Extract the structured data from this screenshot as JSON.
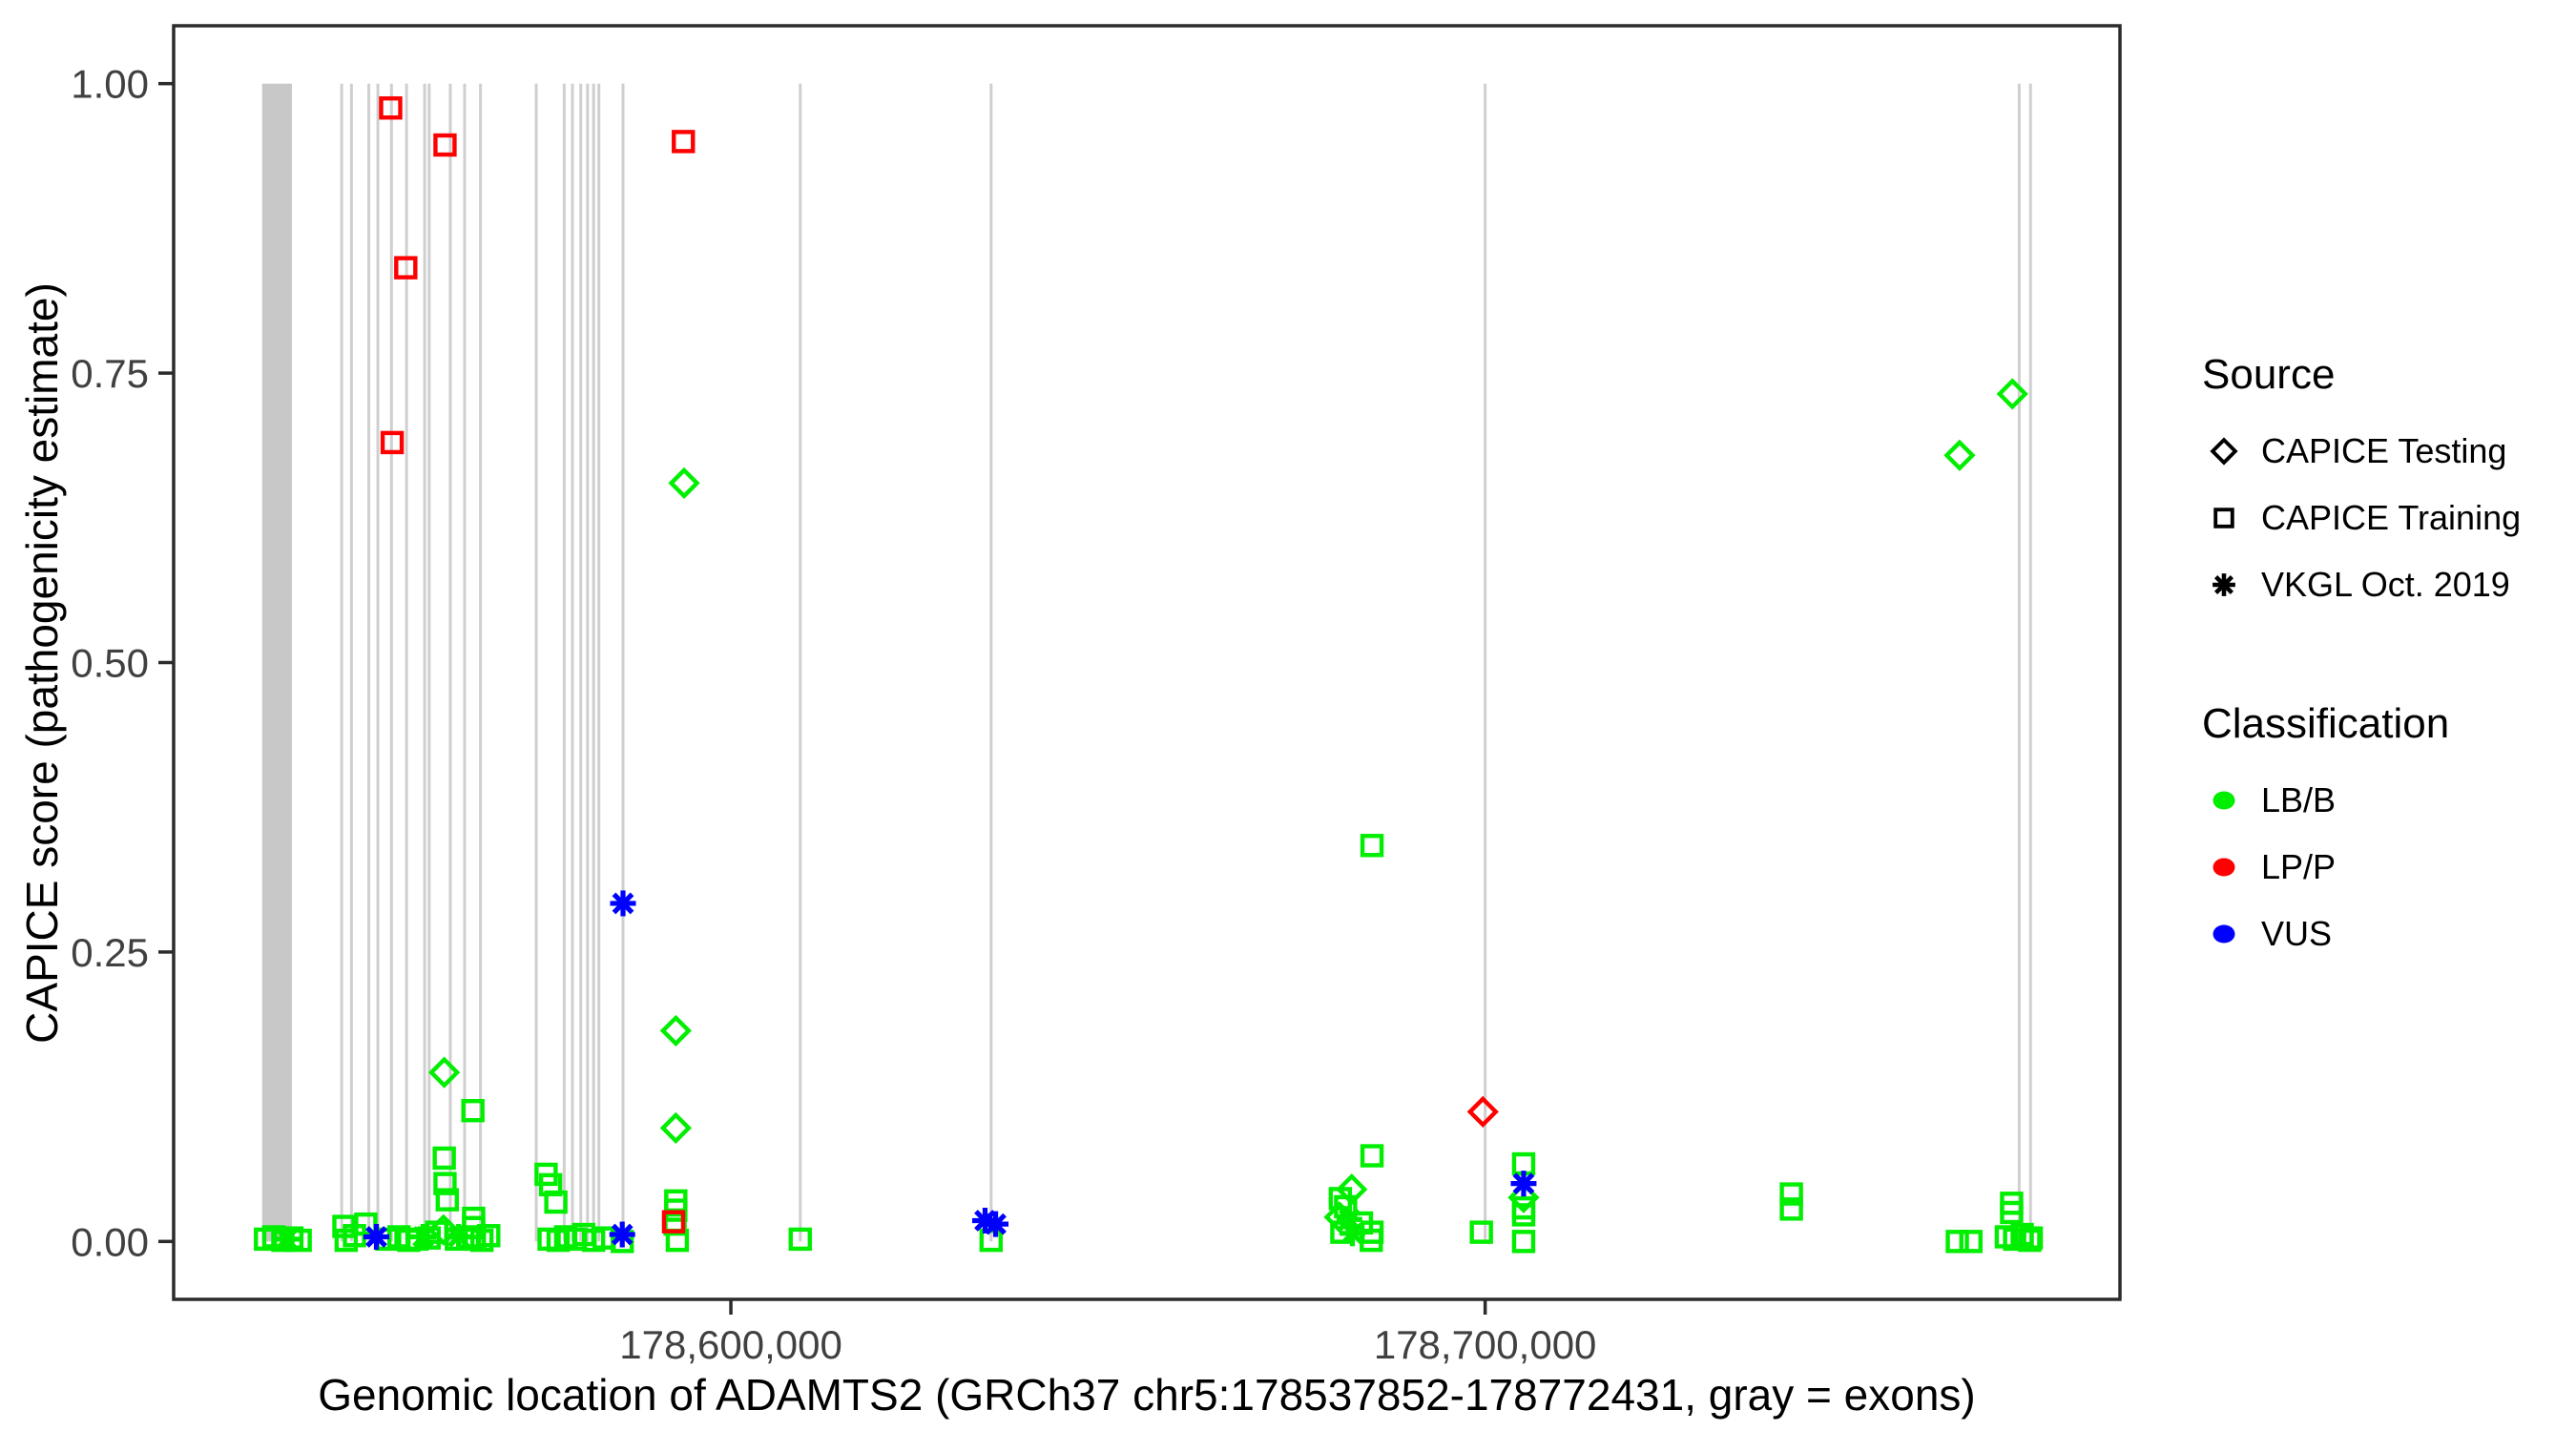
{
  "chart_data": {
    "type": "scatter",
    "title": "",
    "xlabel": "Genomic location of ADAMTS2 (GRCh37 chr5:178537852-178772431, gray = exons)",
    "ylabel": "CAPICE score (pathogenicity estimate)",
    "x_domain": [
      178537852,
      178772431
    ],
    "y_domain": [
      0,
      1
    ],
    "grid": "off",
    "x_ticks": [
      {
        "value": 178600000,
        "label": "178,600,000"
      },
      {
        "value": 178700000,
        "label": "178,700,000"
      }
    ],
    "y_ticks": [
      {
        "value": 0.0,
        "label": "0.00"
      },
      {
        "value": 0.25,
        "label": "0.25"
      },
      {
        "value": 0.5,
        "label": "0.50"
      },
      {
        "value": 0.75,
        "label": "0.75"
      },
      {
        "value": 1.0,
        "label": "1.00"
      }
    ],
    "exons": {
      "color_band": "#c8c8c8",
      "color_line": "#cfcfcf",
      "band": [
        178537852,
        178541800
      ],
      "lines": [
        178548400,
        178549700,
        178552000,
        178553200,
        178555000,
        178557000,
        178559400,
        178560000,
        178562800,
        178564700,
        178566800,
        178574200,
        178577900,
        178579000,
        178580100,
        178581000,
        178581800,
        178582500,
        178585700,
        178609200,
        178634500,
        178700000,
        178770800,
        178772300
      ]
    },
    "colors": {
      "LB/B": "#00ee00",
      "LP/P": "#ff0000",
      "VUS": "#0000ff"
    },
    "shapes": {
      "CAPICE Testing": "diamond",
      "CAPICE Training": "square",
      "VKGL Oct. 2019": "asterisk"
    },
    "legend": {
      "source": {
        "title": "Source",
        "items": [
          {
            "label": "CAPICE Testing",
            "shape": "diamond"
          },
          {
            "label": "CAPICE Training",
            "shape": "square"
          },
          {
            "label": "VKGL Oct. 2019",
            "shape": "asterisk"
          }
        ]
      },
      "classification": {
        "title": "Classification",
        "items": [
          {
            "label": "LB/B",
            "color": "#00ee00"
          },
          {
            "label": "LP/P",
            "color": "#ff0000"
          },
          {
            "label": "VUS",
            "color": "#0000ff"
          }
        ]
      }
    },
    "points": [
      {
        "x": 178538300,
        "y": 0.002,
        "source": "CAPICE Training",
        "class": "LB/B"
      },
      {
        "x": 178539400,
        "y": 0.004,
        "source": "CAPICE Training",
        "class": "LB/B"
      },
      {
        "x": 178540600,
        "y": 0.001,
        "source": "CAPICE Training",
        "class": "LB/B"
      },
      {
        "x": 178541800,
        "y": 0.003,
        "source": "CAPICE Training",
        "class": "LB/B"
      },
      {
        "x": 178542900,
        "y": 0.001,
        "source": "CAPICE Training",
        "class": "LB/B"
      },
      {
        "x": 178548700,
        "y": 0.013,
        "source": "CAPICE Training",
        "class": "LB/B"
      },
      {
        "x": 178549000,
        "y": 0.001,
        "source": "CAPICE Training",
        "class": "LB/B"
      },
      {
        "x": 178550100,
        "y": 0.005,
        "source": "CAPICE Training",
        "class": "LB/B"
      },
      {
        "x": 178551600,
        "y": 0.015,
        "source": "CAPICE Training",
        "class": "LB/B"
      },
      {
        "x": 178554400,
        "y": 0.002,
        "source": "CAPICE Training",
        "class": "LB/B"
      },
      {
        "x": 178556000,
        "y": 0.004,
        "source": "CAPICE Training",
        "class": "LB/B"
      },
      {
        "x": 178557300,
        "y": 0.001,
        "source": "CAPICE Training",
        "class": "LB/B"
      },
      {
        "x": 178558400,
        "y": 0.002,
        "source": "CAPICE Training",
        "class": "LB/B"
      },
      {
        "x": 178560000,
        "y": 0.003,
        "source": "CAPICE Training",
        "class": "LB/B"
      },
      {
        "x": 178561000,
        "y": 0.008,
        "source": "CAPICE Training",
        "class": "LB/B"
      },
      {
        "x": 178562000,
        "y": 0.072,
        "source": "CAPICE Training",
        "class": "LB/B"
      },
      {
        "x": 178562100,
        "y": 0.05,
        "source": "CAPICE Training",
        "class": "LB/B"
      },
      {
        "x": 178562400,
        "y": 0.036,
        "source": "CAPICE Training",
        "class": "LB/B"
      },
      {
        "x": 178563600,
        "y": 0.002,
        "source": "CAPICE Training",
        "class": "LB/B"
      },
      {
        "x": 178565200,
        "y": 0.004,
        "source": "CAPICE Training",
        "class": "LB/B"
      },
      {
        "x": 178565800,
        "y": 0.113,
        "source": "CAPICE Training",
        "class": "LB/B"
      },
      {
        "x": 178565900,
        "y": 0.02,
        "source": "CAPICE Training",
        "class": "LB/B"
      },
      {
        "x": 178565900,
        "y": 0.012,
        "source": "CAPICE Training",
        "class": "LB/B"
      },
      {
        "x": 178566000,
        "y": 0.002,
        "source": "CAPICE Training",
        "class": "LB/B"
      },
      {
        "x": 178567000,
        "y": 0.001,
        "source": "CAPICE Training",
        "class": "LB/B"
      },
      {
        "x": 178567900,
        "y": 0.005,
        "source": "CAPICE Training",
        "class": "LB/B"
      },
      {
        "x": 178575500,
        "y": 0.058,
        "source": "CAPICE Training",
        "class": "LB/B"
      },
      {
        "x": 178576100,
        "y": 0.049,
        "source": "CAPICE Training",
        "class": "LB/B"
      },
      {
        "x": 178576800,
        "y": 0.034,
        "source": "CAPICE Training",
        "class": "LB/B"
      },
      {
        "x": 178575900,
        "y": 0.002,
        "source": "CAPICE Training",
        "class": "LB/B"
      },
      {
        "x": 178577100,
        "y": 0.001,
        "source": "CAPICE Training",
        "class": "LB/B"
      },
      {
        "x": 178578100,
        "y": 0.004,
        "source": "CAPICE Training",
        "class": "LB/B"
      },
      {
        "x": 178579400,
        "y": 0.002,
        "source": "CAPICE Training",
        "class": "LB/B"
      },
      {
        "x": 178580500,
        "y": 0.006,
        "source": "CAPICE Training",
        "class": "LB/B"
      },
      {
        "x": 178581800,
        "y": 0.001,
        "source": "CAPICE Training",
        "class": "LB/B"
      },
      {
        "x": 178583200,
        "y": 0.003,
        "source": "CAPICE Training",
        "class": "LB/B"
      },
      {
        "x": 178585600,
        "y": 0.0,
        "source": "CAPICE Training",
        "class": "LB/B"
      },
      {
        "x": 178592700,
        "y": 0.035,
        "source": "CAPICE Training",
        "class": "LB/B"
      },
      {
        "x": 178592700,
        "y": 0.027,
        "source": "CAPICE Training",
        "class": "LB/B"
      },
      {
        "x": 178592600,
        "y": 0.015,
        "source": "CAPICE Training",
        "class": "LB/B"
      },
      {
        "x": 178592900,
        "y": 0.001,
        "source": "CAPICE Training",
        "class": "LB/B"
      },
      {
        "x": 178609200,
        "y": 0.002,
        "source": "CAPICE Training",
        "class": "LB/B"
      },
      {
        "x": 178634500,
        "y": 0.001,
        "source": "CAPICE Training",
        "class": "LB/B"
      },
      {
        "x": 178680800,
        "y": 0.037,
        "source": "CAPICE Training",
        "class": "LB/B"
      },
      {
        "x": 178681500,
        "y": 0.03,
        "source": "CAPICE Training",
        "class": "LB/B"
      },
      {
        "x": 178683600,
        "y": 0.016,
        "source": "CAPICE Training",
        "class": "LB/B"
      },
      {
        "x": 178681000,
        "y": 0.008,
        "source": "CAPICE Training",
        "class": "LB/B"
      },
      {
        "x": 178685000,
        "y": 0.008,
        "source": "CAPICE Training",
        "class": "LB/B"
      },
      {
        "x": 178684900,
        "y": 0.001,
        "source": "CAPICE Training",
        "class": "LB/B"
      },
      {
        "x": 178685000,
        "y": 0.342,
        "source": "CAPICE Training",
        "class": "LB/B"
      },
      {
        "x": 178685000,
        "y": 0.074,
        "source": "CAPICE Training",
        "class": "LB/B"
      },
      {
        "x": 178699500,
        "y": 0.008,
        "source": "CAPICE Training",
        "class": "LB/B"
      },
      {
        "x": 178705100,
        "y": 0.067,
        "source": "CAPICE Training",
        "class": "LB/B"
      },
      {
        "x": 178705100,
        "y": 0.029,
        "source": "CAPICE Training",
        "class": "LB/B"
      },
      {
        "x": 178705100,
        "y": 0.023,
        "source": "CAPICE Training",
        "class": "LB/B"
      },
      {
        "x": 178705100,
        "y": 0.0,
        "source": "CAPICE Training",
        "class": "LB/B"
      },
      {
        "x": 178740600,
        "y": 0.041,
        "source": "CAPICE Training",
        "class": "LB/B"
      },
      {
        "x": 178740600,
        "y": 0.028,
        "source": "CAPICE Training",
        "class": "LB/B"
      },
      {
        "x": 178762600,
        "y": 0.0,
        "source": "CAPICE Training",
        "class": "LB/B"
      },
      {
        "x": 178764400,
        "y": 0.0,
        "source": "CAPICE Training",
        "class": "LB/B"
      },
      {
        "x": 178769800,
        "y": 0.033,
        "source": "CAPICE Training",
        "class": "LB/B"
      },
      {
        "x": 178769800,
        "y": 0.025,
        "source": "CAPICE Training",
        "class": "LB/B"
      },
      {
        "x": 178769100,
        "y": 0.004,
        "source": "CAPICE Training",
        "class": "LB/B"
      },
      {
        "x": 178770200,
        "y": 0.002,
        "source": "CAPICE Training",
        "class": "LB/B"
      },
      {
        "x": 178771200,
        "y": 0.006,
        "source": "CAPICE Training",
        "class": "LB/B"
      },
      {
        "x": 178772200,
        "y": 0.001,
        "source": "CAPICE Training",
        "class": "LB/B"
      },
      {
        "x": 178772400,
        "y": 0.003,
        "source": "CAPICE Training",
        "class": "LB/B"
      },
      {
        "x": 178554900,
        "y": 0.979,
        "source": "CAPICE Training",
        "class": "LP/P"
      },
      {
        "x": 178562100,
        "y": 0.947,
        "source": "CAPICE Training",
        "class": "LP/P"
      },
      {
        "x": 178556900,
        "y": 0.841,
        "source": "CAPICE Training",
        "class": "LP/P"
      },
      {
        "x": 178555100,
        "y": 0.69,
        "source": "CAPICE Training",
        "class": "LP/P"
      },
      {
        "x": 178593700,
        "y": 0.95,
        "source": "CAPICE Training",
        "class": "LP/P"
      },
      {
        "x": 178592400,
        "y": 0.017,
        "source": "CAPICE Training",
        "class": "LP/P"
      },
      {
        "x": 178562000,
        "y": 0.146,
        "source": "CAPICE Testing",
        "class": "LB/B"
      },
      {
        "x": 178561900,
        "y": 0.01,
        "source": "CAPICE Testing",
        "class": "LB/B"
      },
      {
        "x": 178592700,
        "y": 0.182,
        "source": "CAPICE Testing",
        "class": "LB/B"
      },
      {
        "x": 178592700,
        "y": 0.098,
        "source": "CAPICE Testing",
        "class": "LB/B"
      },
      {
        "x": 178593800,
        "y": 0.655,
        "source": "CAPICE Testing",
        "class": "LB/B"
      },
      {
        "x": 178682300,
        "y": 0.045,
        "source": "CAPICE Testing",
        "class": "LB/B"
      },
      {
        "x": 178680700,
        "y": 0.021,
        "source": "CAPICE Testing",
        "class": "LB/B"
      },
      {
        "x": 178705100,
        "y": 0.038,
        "source": "CAPICE Testing",
        "class": "LB/B"
      },
      {
        "x": 178762900,
        "y": 0.679,
        "source": "CAPICE Testing",
        "class": "LB/B"
      },
      {
        "x": 178769900,
        "y": 0.732,
        "source": "CAPICE Testing",
        "class": "LB/B"
      },
      {
        "x": 178699700,
        "y": 0.112,
        "source": "CAPICE Testing",
        "class": "LP/P"
      },
      {
        "x": 178541100,
        "y": 0.002,
        "source": "VKGL Oct. 2019",
        "class": "LB/B"
      },
      {
        "x": 178559200,
        "y": 0.004,
        "source": "VKGL Oct. 2019",
        "class": "LB/B"
      },
      {
        "x": 178563900,
        "y": 0.004,
        "source": "VKGL Oct. 2019",
        "class": "LB/B"
      },
      {
        "x": 178682000,
        "y": 0.019,
        "source": "VKGL Oct. 2019",
        "class": "LB/B"
      },
      {
        "x": 178682400,
        "y": 0.007,
        "source": "VKGL Oct. 2019",
        "class": "LB/B"
      },
      {
        "x": 178553000,
        "y": 0.004,
        "source": "VKGL Oct. 2019",
        "class": "VUS"
      },
      {
        "x": 178585700,
        "y": 0.292,
        "source": "VKGL Oct. 2019",
        "class": "VUS"
      },
      {
        "x": 178585600,
        "y": 0.006,
        "source": "VKGL Oct. 2019",
        "class": "VUS"
      },
      {
        "x": 178633700,
        "y": 0.018,
        "source": "VKGL Oct. 2019",
        "class": "VUS"
      },
      {
        "x": 178635100,
        "y": 0.015,
        "source": "VKGL Oct. 2019",
        "class": "VUS"
      },
      {
        "x": 178705100,
        "y": 0.05,
        "source": "VKGL Oct. 2019",
        "class": "VUS"
      }
    ]
  }
}
